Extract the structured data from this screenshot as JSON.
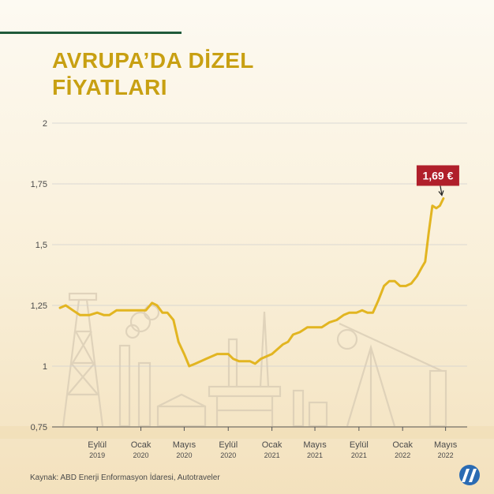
{
  "title_lines": [
    "AVRUPA’DA DİZEL",
    "FİYATLARI"
  ],
  "source": "Kaynak: ABD Enerji Enformasyon İdaresi, Autotraveler",
  "logo": {
    "icon": "aa-news-agency-logo"
  },
  "colors": {
    "line": "#e2b521",
    "callout": "#b01f2b",
    "title": "#c8a012",
    "grid": "#cfcfcf",
    "text": "#4a4a4a",
    "rule": "#1f5a3a"
  },
  "chart_data": {
    "type": "line",
    "title": "AVRUPA’DA DİZEL FİYATLARI",
    "xlabel": "",
    "ylabel": "",
    "ylim": [
      0.75,
      2
    ],
    "yticks": [
      0.75,
      1,
      1.25,
      1.5,
      1.75,
      2
    ],
    "ytick_labels": [
      "0,75",
      "1",
      "1,25",
      "1,5",
      "1,75",
      "2"
    ],
    "xticks": [
      {
        "month": "Eylül",
        "year": "2019",
        "x": "2019-09"
      },
      {
        "month": "Ocak",
        "year": "2020",
        "x": "2020-01"
      },
      {
        "month": "Mayıs",
        "year": "2020",
        "x": "2020-05"
      },
      {
        "month": "Eylül",
        "year": "2020",
        "x": "2020-09"
      },
      {
        "month": "Ocak",
        "year": "2021",
        "x": "2021-01"
      },
      {
        "month": "Mayıs",
        "year": "2021",
        "x": "2021-05"
      },
      {
        "month": "Eylül",
        "year": "2021",
        "x": "2021-09"
      },
      {
        "month": "Ocak",
        "year": "2022",
        "x": "2022-01"
      },
      {
        "month": "Mayıs",
        "year": "2022",
        "x": "2022-05"
      }
    ],
    "x_domain": [
      "2019-05-20",
      "2022-05-15"
    ],
    "grid": true,
    "series": [
      {
        "values": [
          [
            "2019-05-20",
            1.24
          ],
          [
            "2019-06-05",
            1.25
          ],
          [
            "2019-06-25",
            1.23
          ],
          [
            "2019-07-15",
            1.21
          ],
          [
            "2019-08-10",
            1.21
          ],
          [
            "2019-09-01",
            1.22
          ],
          [
            "2019-09-20",
            1.21
          ],
          [
            "2019-10-05",
            1.21
          ],
          [
            "2019-10-25",
            1.23
          ],
          [
            "2019-11-20",
            1.23
          ],
          [
            "2019-12-20",
            1.23
          ],
          [
            "2020-01-15",
            1.23
          ],
          [
            "2020-02-01",
            1.26
          ],
          [
            "2020-02-15",
            1.25
          ],
          [
            "2020-03-01",
            1.22
          ],
          [
            "2020-03-15",
            1.22
          ],
          [
            "2020-04-01",
            1.19
          ],
          [
            "2020-04-15",
            1.1
          ],
          [
            "2020-05-01",
            1.05
          ],
          [
            "2020-05-15",
            1.0
          ],
          [
            "2020-06-01",
            1.01
          ],
          [
            "2020-07-01",
            1.03
          ],
          [
            "2020-08-01",
            1.05
          ],
          [
            "2020-09-01",
            1.05
          ],
          [
            "2020-09-15",
            1.03
          ],
          [
            "2020-10-01",
            1.02
          ],
          [
            "2020-11-01",
            1.02
          ],
          [
            "2020-11-15",
            1.01
          ],
          [
            "2020-12-01",
            1.03
          ],
          [
            "2021-01-01",
            1.05
          ],
          [
            "2021-02-01",
            1.09
          ],
          [
            "2021-02-15",
            1.1
          ],
          [
            "2021-03-01",
            1.13
          ],
          [
            "2021-03-20",
            1.14
          ],
          [
            "2021-04-10",
            1.16
          ],
          [
            "2021-05-01",
            1.16
          ],
          [
            "2021-05-20",
            1.16
          ],
          [
            "2021-06-10",
            1.18
          ],
          [
            "2021-07-01",
            1.19
          ],
          [
            "2021-07-20",
            1.21
          ],
          [
            "2021-08-05",
            1.22
          ],
          [
            "2021-08-25",
            1.22
          ],
          [
            "2021-09-10",
            1.23
          ],
          [
            "2021-09-25",
            1.22
          ],
          [
            "2021-10-10",
            1.22
          ],
          [
            "2021-10-25",
            1.27
          ],
          [
            "2021-11-10",
            1.33
          ],
          [
            "2021-11-25",
            1.35
          ],
          [
            "2021-12-10",
            1.35
          ],
          [
            "2021-12-25",
            1.33
          ],
          [
            "2022-01-10",
            1.33
          ],
          [
            "2022-01-25",
            1.34
          ],
          [
            "2022-02-10",
            1.37
          ],
          [
            "2022-02-25",
            1.41
          ],
          [
            "2022-03-05",
            1.43
          ],
          [
            "2022-03-15",
            1.55
          ],
          [
            "2022-03-25",
            1.66
          ],
          [
            "2022-04-05",
            1.65
          ],
          [
            "2022-04-15",
            1.66
          ],
          [
            "2022-04-25",
            1.69
          ]
        ]
      }
    ],
    "annotations": [
      {
        "text": "1,69 €",
        "x": "2022-04-25",
        "y": 1.69
      }
    ]
  }
}
